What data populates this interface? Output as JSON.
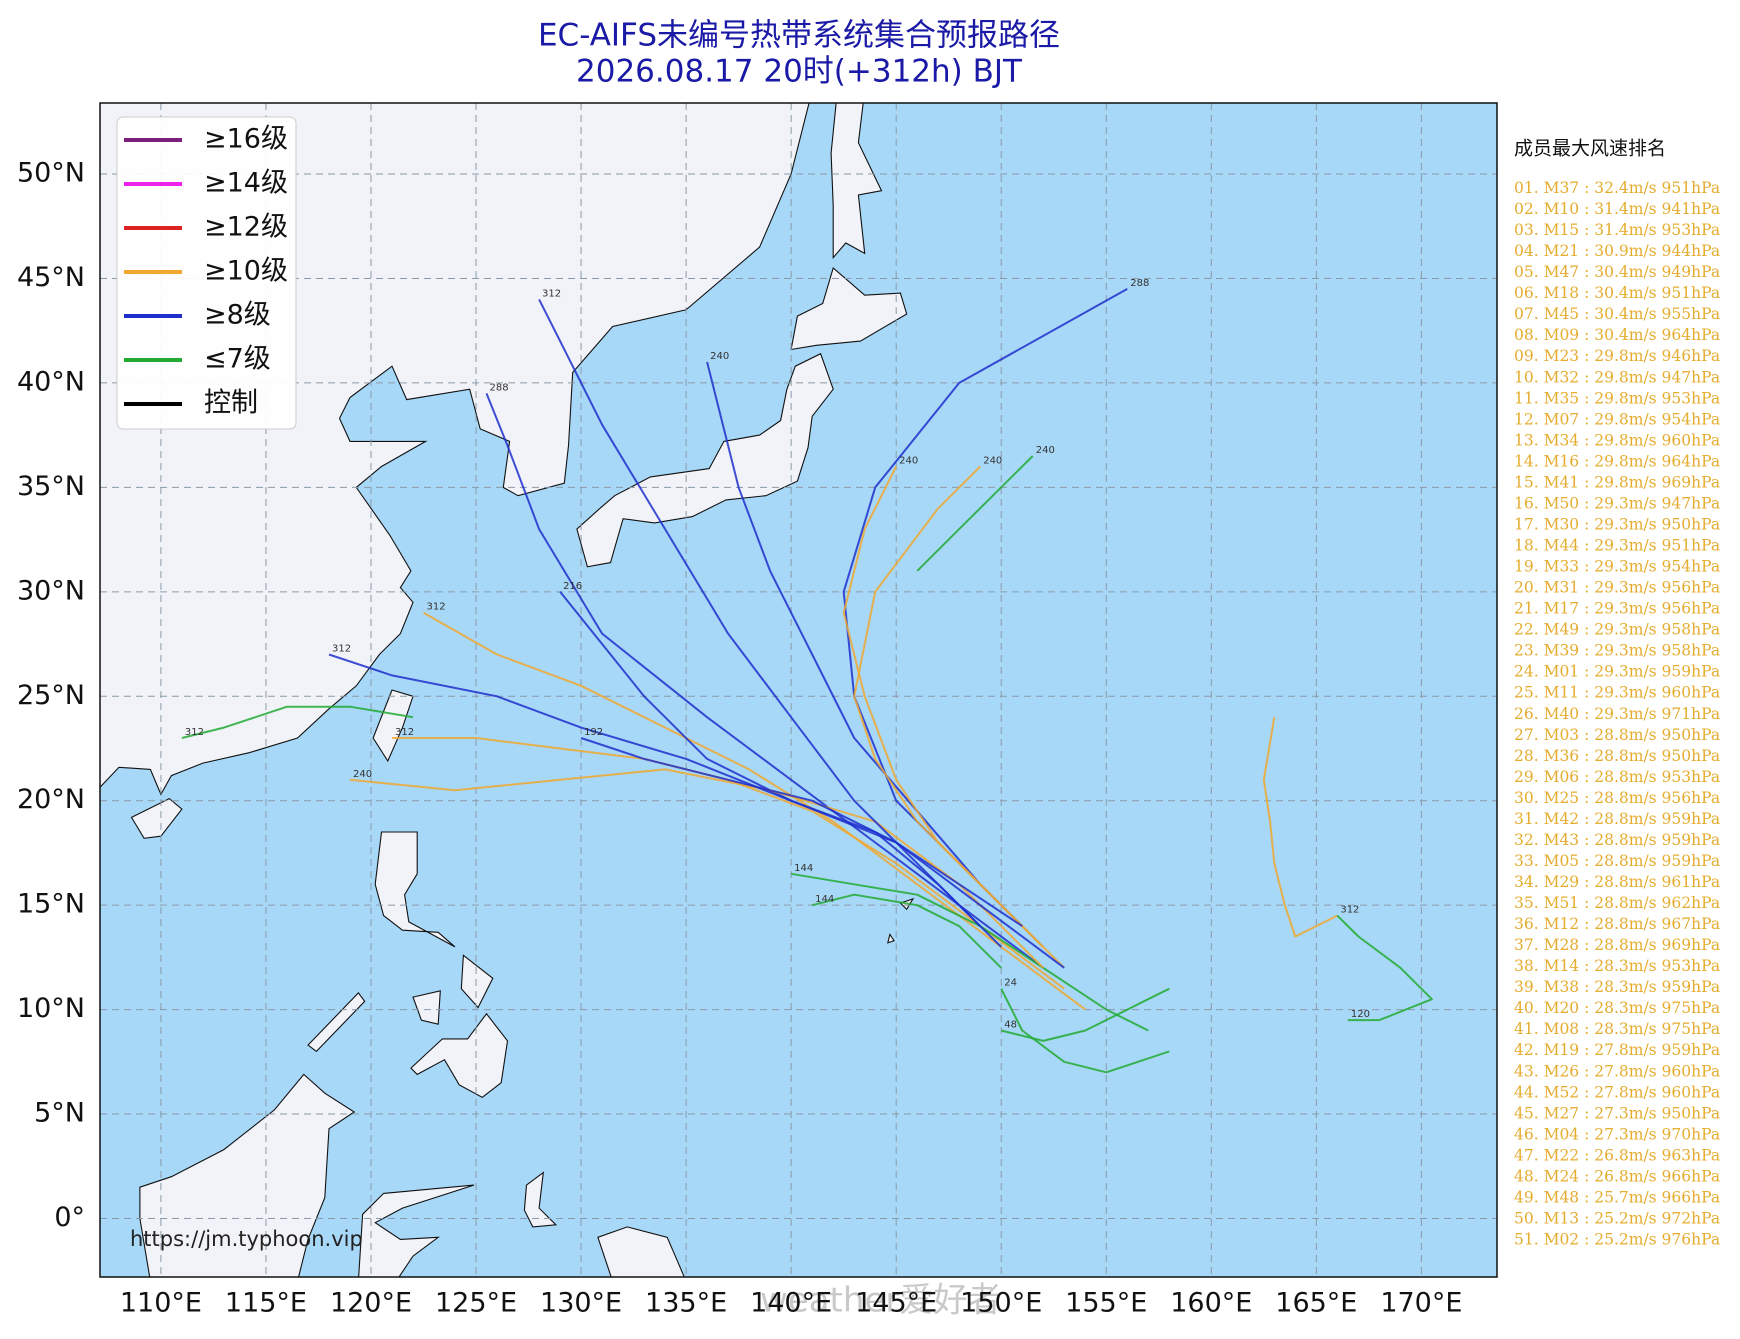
{
  "map": {
    "title": "EC-AIFS未编号热带系统集合预报路径",
    "subtitle": "2026.08.17 20时(+312h) BJT",
    "xlim": [
      107.1,
      173.6
    ],
    "ylim": [
      -2.8,
      53.4
    ],
    "xticks": [
      {
        "value": 110,
        "label": "110°E"
      },
      {
        "value": 115,
        "label": "115°E"
      },
      {
        "value": 120,
        "label": "120°E"
      },
      {
        "value": 125,
        "label": "125°E"
      },
      {
        "value": 130,
        "label": "130°E"
      },
      {
        "value": 135,
        "label": "135°E"
      },
      {
        "value": 140,
        "label": "140°E"
      },
      {
        "value": 145,
        "label": "145°E"
      },
      {
        "value": 150,
        "label": "150°E"
      },
      {
        "value": 155,
        "label": "155°E"
      },
      {
        "value": 160,
        "label": "160°E"
      },
      {
        "value": 165,
        "label": "165°E"
      },
      {
        "value": 170,
        "label": "170°E"
      }
    ],
    "yticks": [
      {
        "value": 0,
        "label": "0°"
      },
      {
        "value": 5,
        "label": "5°N"
      },
      {
        "value": 10,
        "label": "10°N"
      },
      {
        "value": 15,
        "label": "15°N"
      },
      {
        "value": 20,
        "label": "20°N"
      },
      {
        "value": 25,
        "label": "25°N"
      },
      {
        "value": 30,
        "label": "30°N"
      },
      {
        "value": 35,
        "label": "35°N"
      },
      {
        "value": 40,
        "label": "40°N"
      },
      {
        "value": 45,
        "label": "45°N"
      },
      {
        "value": 50,
        "label": "50°N"
      }
    ],
    "grid": true,
    "legend": [
      {
        "label": "≥16级",
        "color": "#7b1f7b"
      },
      {
        "label": "≥14级",
        "color": "#ee22ee"
      },
      {
        "label": "≥12级",
        "color": "#dd2222"
      },
      {
        "label": "≥10级",
        "color": "#f0a830"
      },
      {
        "label": "≥8级",
        "color": "#1f2fcc"
      },
      {
        "label": "≤7级",
        "color": "#22aa33"
      },
      {
        "label": "控制",
        "color": "#000000"
      }
    ],
    "tracks": [
      {
        "color": "#1f2fcc",
        "lon": [
          152,
          148,
          144,
          140,
          136,
          131,
          128,
          126.5,
          125.5
        ],
        "lat": [
          12,
          15,
          18,
          21,
          24,
          28,
          33,
          37,
          39.5
        ],
        "end_label": "288"
      },
      {
        "color": "#f0a830",
        "lon": [
          153,
          149,
          145,
          141,
          137,
          133,
          129,
          125,
          121
        ],
        "lat": [
          11,
          14,
          17,
          19.5,
          21,
          22,
          22.5,
          23,
          23
        ],
        "end_label": "312"
      },
      {
        "color": "#f0a830",
        "lon": [
          154,
          150,
          146,
          142,
          138,
          134,
          130,
          126,
          122.5
        ],
        "lat": [
          10,
          13,
          16,
          19,
          21.5,
          23.5,
          25.5,
          27,
          29
        ],
        "end_label": "312"
      },
      {
        "color": "#1f2fcc",
        "lon": [
          152,
          149,
          146,
          143,
          141,
          139,
          137.5,
          136
        ],
        "lat": [
          13,
          16,
          19.5,
          23,
          27,
          31,
          35,
          41
        ],
        "end_label": "240"
      },
      {
        "color": "#1f2fcc",
        "lon": [
          151,
          148,
          145,
          143,
          142.5,
          144,
          148,
          156
        ],
        "lat": [
          14,
          17,
          20,
          25,
          30,
          35,
          40,
          44.5
        ],
        "end_label": "288"
      },
      {
        "color": "#f0a830",
        "lon": [
          153,
          150,
          147,
          145,
          143.5,
          142.5,
          143.5,
          145
        ],
        "lat": [
          12,
          15,
          18,
          21,
          25,
          29,
          33,
          36
        ],
        "end_label": "240"
      },
      {
        "color": "#22aa33",
        "lon": [
          157,
          155,
          152,
          149,
          146,
          143,
          140
        ],
        "lat": [
          9,
          10,
          12,
          14,
          15.5,
          16,
          16.5
        ],
        "end_label": "144"
      },
      {
        "color": "#22aa33",
        "lon": [
          158,
          156,
          154,
          152,
          150
        ],
        "lat": [
          11,
          10,
          9,
          8.5,
          9
        ],
        "end_label": "48"
      },
      {
        "color": "#f0a830",
        "lon": [
          163,
          162.5,
          162.8,
          163,
          163.5,
          164,
          166
        ],
        "lat": [
          24,
          21,
          19,
          17,
          15,
          13.5,
          14.5
        ],
        "end_label": "312"
      },
      {
        "color": "#22aa33",
        "lon": [
          166,
          167,
          169,
          170.5,
          168,
          166.5
        ],
        "lat": [
          14.5,
          13.5,
          12,
          10.5,
          9.5,
          9.5
        ],
        "end_label": "120"
      },
      {
        "color": "#1f2fcc",
        "lon": [
          150,
          147,
          144,
          140,
          136,
          133,
          131,
          129
        ],
        "lat": [
          13,
          16,
          18.5,
          20,
          22,
          25,
          27.5,
          30
        ],
        "end_label": "216"
      },
      {
        "color": "#f0a830",
        "lon": [
          152,
          148,
          144,
          139,
          134,
          129,
          124,
          119
        ],
        "lat": [
          12,
          16,
          19,
          20.5,
          21.5,
          21,
          20.5,
          21
        ],
        "end_label": "240"
      },
      {
        "color": "#1f2fcc",
        "lon": [
          153,
          149,
          145,
          140,
          135,
          130,
          126,
          121,
          118
        ],
        "lat": [
          12,
          15,
          18,
          20,
          22,
          23.5,
          25,
          26,
          27
        ],
        "end_label": "312"
      },
      {
        "color": "#22aa33",
        "lon": [
          150,
          148,
          146,
          143,
          141
        ],
        "lat": [
          12,
          14,
          15,
          15.5,
          15
        ],
        "end_label": "144"
      },
      {
        "color": "#1f2fcc",
        "lon": [
          149,
          146,
          143,
          140,
          137,
          134,
          131,
          129,
          128
        ],
        "lat": [
          14,
          17,
          20,
          24,
          28,
          33,
          38,
          42,
          44
        ],
        "end_label": "312"
      },
      {
        "color": "#f0a830",
        "lon": [
          152,
          149,
          146,
          144,
          143,
          144,
          147,
          149
        ],
        "lat": [
          13,
          16,
          19,
          22,
          25,
          30,
          34,
          36
        ],
        "end_label": "240"
      },
      {
        "color": "#1f2fcc",
        "lon": [
          151,
          148,
          145,
          141,
          137,
          133,
          130
        ],
        "lat": [
          14,
          16,
          18,
          20,
          21,
          22,
          23
        ],
        "end_label": "192"
      },
      {
        "color": "#22aa33",
        "lon": [
          158,
          155,
          153,
          151,
          150
        ],
        "lat": [
          8,
          7,
          7.5,
          9,
          11
        ],
        "end_label": "24"
      },
      {
        "color": "#22aa33",
        "lon": [
          122,
          119,
          116,
          113,
          111
        ],
        "lat": [
          24,
          24.5,
          24.5,
          23.5,
          23
        ],
        "end_label": "312"
      },
      {
        "color": "#22aa33",
        "lon": [
          146,
          148,
          151.5
        ],
        "lat": [
          31,
          33,
          36.5
        ],
        "end_label": "240"
      }
    ],
    "ranking_title": "成员最大风速排名",
    "ranking": [
      "01. M37 : 32.4m/s 951hPa",
      "02. M10 : 31.4m/s 941hPa",
      "03. M15 : 31.4m/s 953hPa",
      "04. M21 : 30.9m/s 944hPa",
      "05. M47 : 30.4m/s 949hPa",
      "06. M18 : 30.4m/s 951hPa",
      "07. M45 : 30.4m/s 955hPa",
      "08. M09 : 30.4m/s 964hPa",
      "09. M23 : 29.8m/s 946hPa",
      "10. M32 : 29.8m/s 947hPa",
      "11. M35 : 29.8m/s 953hPa",
      "12. M07 : 29.8m/s 954hPa",
      "13. M34 : 29.8m/s 960hPa",
      "14. M16 : 29.8m/s 964hPa",
      "15. M41 : 29.8m/s 969hPa",
      "16. M50 : 29.3m/s 947hPa",
      "17. M30 : 29.3m/s 950hPa",
      "18. M44 : 29.3m/s 951hPa",
      "19. M33 : 29.3m/s 954hPa",
      "20. M31 : 29.3m/s 956hPa",
      "21. M17 : 29.3m/s 956hPa",
      "22. M49 : 29.3m/s 958hPa",
      "23. M39 : 29.3m/s 958hPa",
      "24. M01 : 29.3m/s 959hPa",
      "25. M11 : 29.3m/s 960hPa",
      "26. M40 : 29.3m/s 971hPa",
      "27. M03 : 28.8m/s 950hPa",
      "28. M36 : 28.8m/s 950hPa",
      "29. M06 : 28.8m/s 953hPa",
      "30. M25 : 28.8m/s 956hPa",
      "31. M42 : 28.8m/s 959hPa",
      "32. M43 : 28.8m/s 959hPa",
      "33. M05 : 28.8m/s 959hPa",
      "34. M29 : 28.8m/s 961hPa",
      "35. M51 : 28.8m/s 962hPa",
      "36. M12 : 28.8m/s 967hPa",
      "37. M28 : 28.8m/s 969hPa",
      "38. M14 : 28.3m/s 953hPa",
      "39. M38 : 28.3m/s 959hPa",
      "40. M20 : 28.3m/s 975hPa",
      "41. M08 : 28.3m/s 975hPa",
      "42. M19 : 27.8m/s 959hPa",
      "43. M26 : 27.8m/s 960hPa",
      "44. M52 : 27.8m/s 960hPa",
      "45. M27 : 27.3m/s 950hPa",
      "46. M04 : 27.3m/s 970hPa",
      "47. M22 : 26.8m/s 963hPa",
      "48. M24 : 26.8m/s 966hPa",
      "49. M48 : 25.7m/s 966hPa",
      "50. M13 : 25.2m/s 972hPa",
      "51. M02 : 25.2m/s 976hPa"
    ],
    "source": "https://jm.typhoon.vip",
    "watermark": "weather爱好者"
  }
}
